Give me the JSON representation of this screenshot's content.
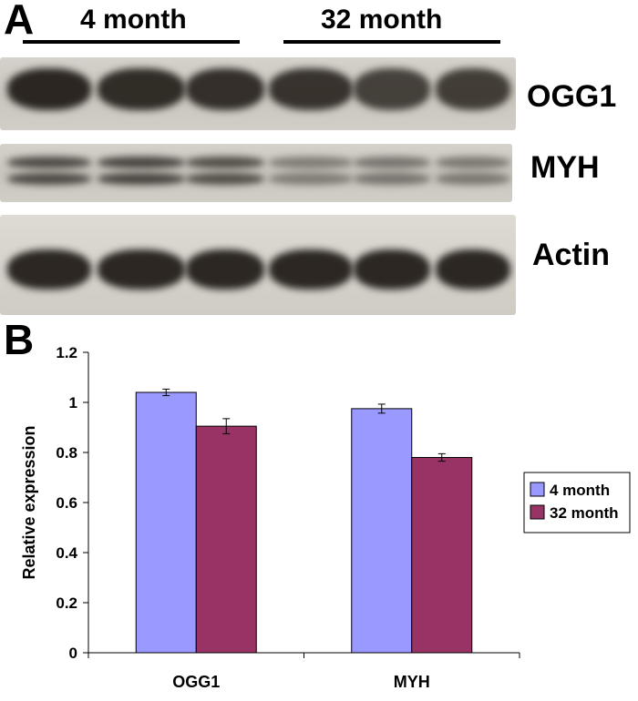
{
  "panel_a": {
    "letter": "A",
    "groups": [
      "4 month",
      "32 month"
    ],
    "blots": [
      {
        "label": "OGG1",
        "band_darkness": [
          0.95,
          0.92,
          0.9,
          0.88,
          0.8,
          0.82
        ]
      },
      {
        "label": "MYH",
        "band_darkness": [
          0.75,
          0.78,
          0.72,
          0.45,
          0.5,
          0.48
        ]
      },
      {
        "label": "Actin",
        "band_darkness": [
          0.95,
          0.95,
          0.95,
          0.95,
          0.95,
          0.95
        ]
      }
    ]
  },
  "chart_data": {
    "panel_letter": "B",
    "type": "bar",
    "categories": [
      "OGG1",
      "MYH"
    ],
    "series": [
      {
        "name": "4 month",
        "color": "#9999ff",
        "values": [
          1.04,
          0.975
        ],
        "errors": [
          0.013,
          0.018
        ]
      },
      {
        "name": "32 month",
        "color": "#993366",
        "values": [
          0.905,
          0.78
        ],
        "errors": [
          0.03,
          0.015
        ]
      }
    ],
    "ylabel": "Relative expression",
    "ylim": [
      0,
      1.2
    ],
    "yticks": [
      "0",
      "0.2",
      "0.4",
      "0.6",
      "0.8",
      "1",
      "1.2"
    ],
    "ytick_values": [
      0,
      0.2,
      0.4,
      0.6,
      0.8,
      1,
      1.2
    ],
    "grid": false,
    "legend": "right"
  }
}
